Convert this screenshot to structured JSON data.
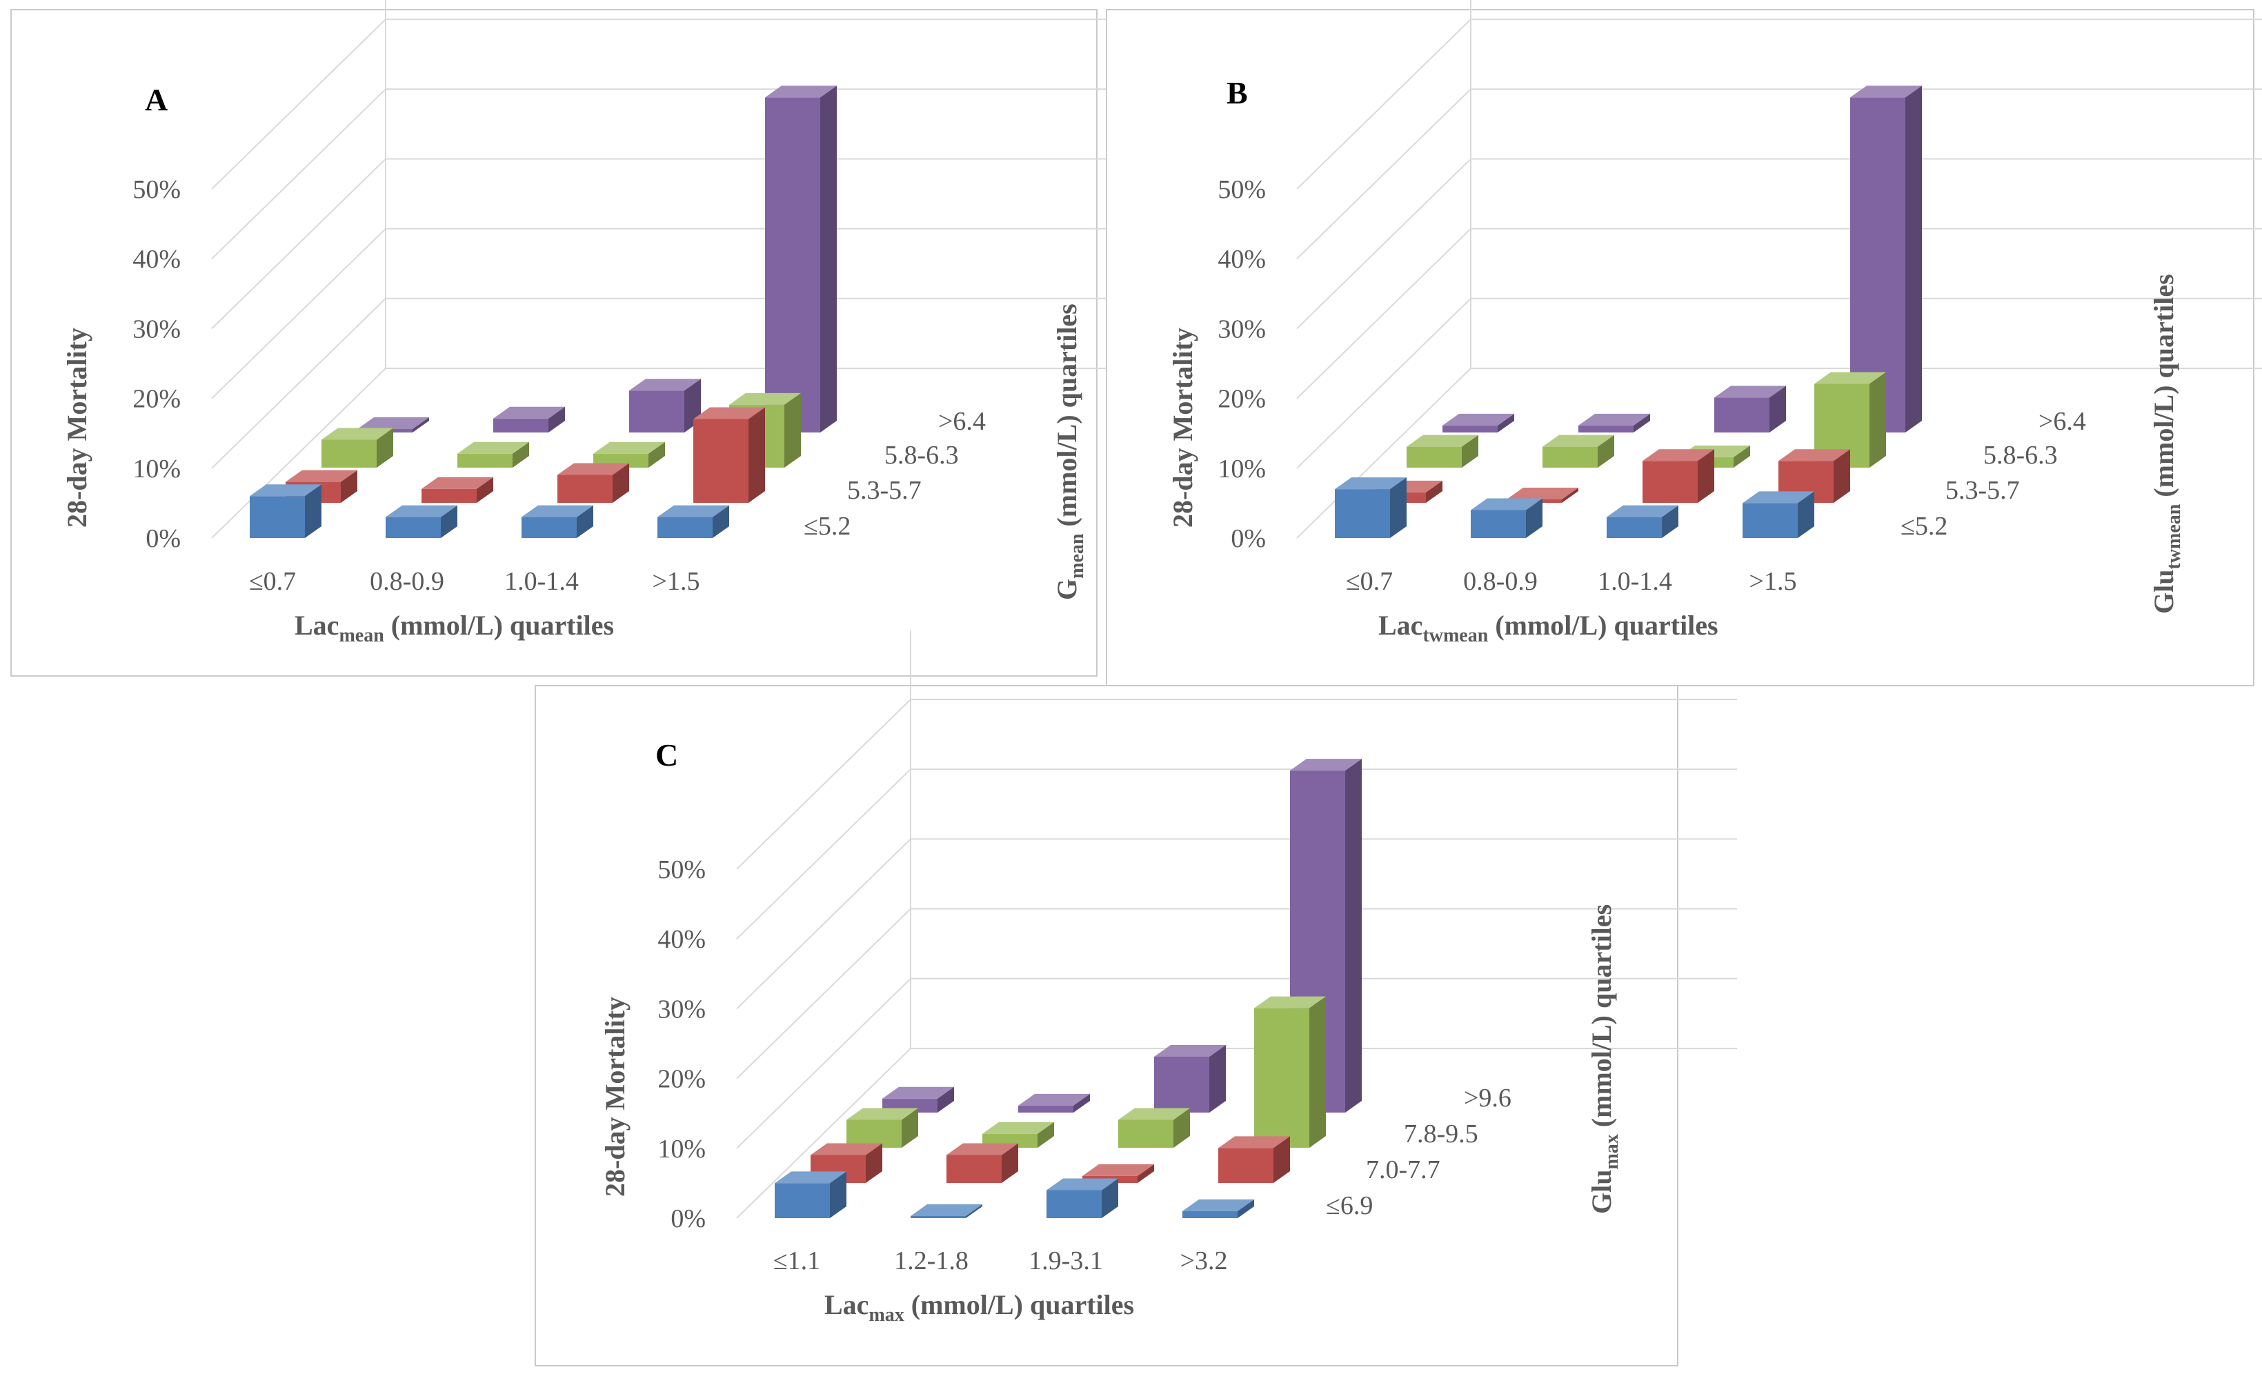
{
  "chart_data": [
    {
      "type": "bar",
      "panel_label": "A",
      "title": "",
      "ylabel": "28-day Mortality",
      "xlabel": {
        "main": "Lac",
        "sub": "mean",
        "rest": " (mmol/L) quartiles"
      },
      "zlabel": {
        "main": "G",
        "sub": "mean",
        "rest": " (mmol/L) quartiles"
      },
      "y_ticks": [
        "0%",
        "10%",
        "20%",
        "30%",
        "40%",
        "50%"
      ],
      "ylim": [
        0,
        50
      ],
      "categories": [
        "≤0.7",
        "0.8-0.9",
        "1.0-1.4",
        ">1.5"
      ],
      "series": [
        {
          "name": "≤5.2",
          "color": "#4f81bd",
          "values": [
            6,
            3,
            3,
            3
          ]
        },
        {
          "name": "5.3-5.7",
          "color": "#c0504d",
          "values": [
            3,
            2,
            4,
            12
          ]
        },
        {
          "name": "5.8-6.3",
          "color": "#9bbb59",
          "values": [
            4,
            2,
            2,
            9
          ]
        },
        {
          "name": ">6.4",
          "color": "#8064a2",
          "values": [
            0.5,
            2,
            6,
            48
          ]
        }
      ]
    },
    {
      "type": "bar",
      "panel_label": "B",
      "title": "",
      "ylabel": "28-day Mortality",
      "xlabel": {
        "main": "Lac",
        "sub": "twmean",
        "rest": " (mmol/L) quartiles"
      },
      "zlabel": {
        "main": "Glu",
        "sub": "twmean",
        "rest": " (mmol/L) quartiles"
      },
      "y_ticks": [
        "0%",
        "10%",
        "20%",
        "30%",
        "40%",
        "50%"
      ],
      "ylim": [
        0,
        50
      ],
      "categories": [
        "≤0.7",
        "0.8-0.9",
        "1.0-1.4",
        ">1.5"
      ],
      "series": [
        {
          "name": "≤5.2",
          "color": "#4f81bd",
          "values": [
            7,
            4,
            3,
            5
          ]
        },
        {
          "name": "5.3-5.7",
          "color": "#c0504d",
          "values": [
            1.5,
            0.5,
            6,
            6
          ]
        },
        {
          "name": "5.8-6.3",
          "color": "#9bbb59",
          "values": [
            3,
            3,
            1.5,
            12
          ]
        },
        {
          "name": ">6.4",
          "color": "#8064a2",
          "values": [
            1,
            1,
            5,
            48
          ]
        }
      ]
    },
    {
      "type": "bar",
      "panel_label": "C",
      "title": "",
      "ylabel": "28-day Mortality",
      "xlabel": {
        "main": "Lac",
        "sub": "max",
        "rest": " (mmol/L) quartiles"
      },
      "zlabel": {
        "main": "Glu",
        "sub": "max",
        "rest": " (mmol/L) quartiles"
      },
      "y_ticks": [
        "0%",
        "10%",
        "20%",
        "30%",
        "40%",
        "50%"
      ],
      "ylim": [
        0,
        50
      ],
      "categories": [
        "≤1.1",
        "1.2-1.8",
        "1.9-3.1",
        ">3.2"
      ],
      "series": [
        {
          "name": "≤6.9",
          "color": "#4f81bd",
          "values": [
            5,
            0.3,
            4,
            1
          ]
        },
        {
          "name": "7.0-7.7",
          "color": "#c0504d",
          "values": [
            4,
            4,
            1,
            5
          ]
        },
        {
          "name": "7.8-9.5",
          "color": "#9bbb59",
          "values": [
            4,
            2,
            4,
            20
          ]
        },
        {
          "name": ">9.6",
          "color": "#8064a2",
          "values": [
            2,
            1,
            8,
            49
          ]
        }
      ]
    }
  ]
}
